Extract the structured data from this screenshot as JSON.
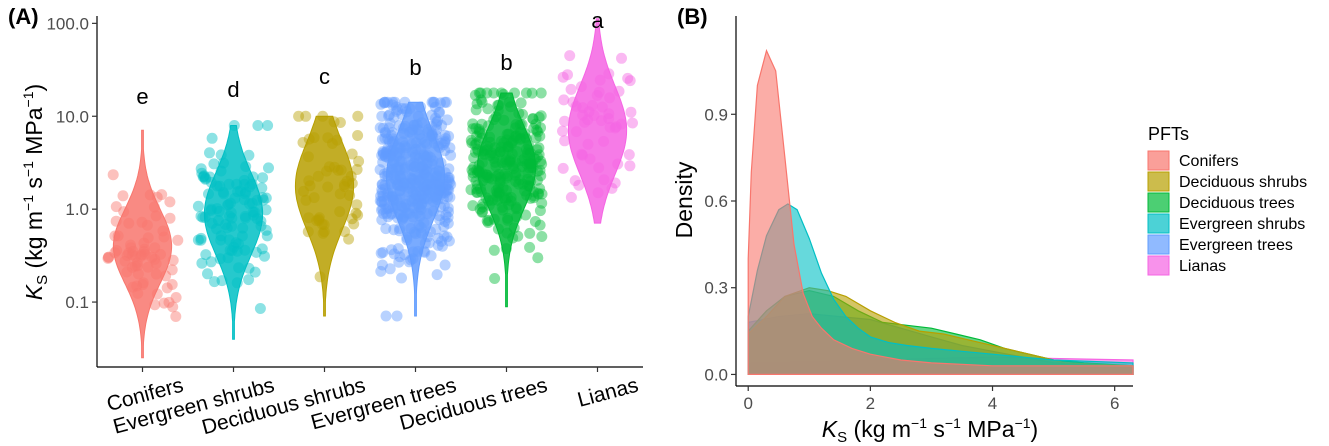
{
  "colors": {
    "Conifers": "#F8766D",
    "Evergreen shrubs": "#00BFC4",
    "Deciduous shrubs": "#B79F00",
    "Evergreen trees": "#619CFF",
    "Deciduous trees": "#00BA38",
    "Lianas": "#F564E3"
  },
  "chart_data": [
    {
      "panel": "(A)",
      "type": "violin",
      "scale": "log10",
      "categories": [
        "Conifers",
        "Evergreen shrubs",
        "Deciduous shrubs",
        "Evergreen trees",
        "Deciduous trees",
        "Lianas"
      ],
      "significance": [
        "e",
        "d",
        "c",
        "b",
        "b",
        "a"
      ],
      "ylim": [
        0.02,
        120
      ],
      "yticks": [
        "0.1",
        "1.0",
        "10.0",
        "100.0"
      ],
      "ytick_values": [
        0.1,
        1.0,
        10.0,
        100.0
      ],
      "ylabel_main": "K",
      "ylabel_sub": "S",
      "ylabel_rest": "(kg m",
      "ylabel_sup1": "−1",
      "ylabel_mid": " s",
      "ylabel_sup2": "−1",
      "ylabel_mid2": " MPa",
      "ylabel_sup3": "−1",
      "ylabel_end": ")",
      "violins": [
        {
          "name": "Conifers",
          "log_range": [
            -1.6,
            0.85
          ],
          "median_log": -0.4,
          "spread": 0.38,
          "n": 70
        },
        {
          "name": "Evergreen shrubs",
          "log_range": [
            -1.4,
            0.9
          ],
          "median_log": -0.05,
          "spread": 0.42,
          "n": 110
        },
        {
          "name": "Deciduous shrubs",
          "log_range": [
            -1.15,
            1.0
          ],
          "median_log": 0.25,
          "spread": 0.45,
          "n": 55
        },
        {
          "name": "Evergreen trees",
          "log_range": [
            -1.15,
            1.15
          ],
          "median_log": 0.35,
          "spread": 0.45,
          "n": 380
        },
        {
          "name": "Deciduous trees",
          "log_range": [
            -1.05,
            1.25
          ],
          "median_log": 0.45,
          "spread": 0.42,
          "n": 250
        },
        {
          "name": "Lianas",
          "log_range": [
            -0.15,
            2.05
          ],
          "median_log": 0.85,
          "spread": 0.45,
          "n": 55
        }
      ]
    },
    {
      "panel": "(B)",
      "type": "area",
      "xlim": [
        -0.2,
        6.3
      ],
      "ylim": [
        -0.04,
        1.24
      ],
      "xticks": [
        "0",
        "2",
        "4",
        "6"
      ],
      "xtick_values": [
        0,
        2,
        4,
        6
      ],
      "yticks": [
        "0.0",
        "0.3",
        "0.6",
        "0.9"
      ],
      "ytick_values": [
        0.0,
        0.3,
        0.6,
        0.9
      ],
      "ylabel": "Density",
      "legend_title": "PFTs",
      "legend_items": [
        "Conifers",
        "Deciduous shrubs",
        "Deciduous trees",
        "Evergreen shrubs",
        "Evergreen trees",
        "Lianas"
      ],
      "series": [
        {
          "name": "Lianas",
          "x": [
            0,
            1,
            2,
            3,
            4,
            5,
            6.3
          ],
          "y": [
            0.04,
            0.045,
            0.05,
            0.055,
            0.06,
            0.055,
            0.05
          ]
        },
        {
          "name": "Evergreen trees",
          "x": [
            0,
            0.5,
            1,
            1.5,
            2,
            2.5,
            3,
            3.5,
            4,
            4.5,
            5,
            6.3
          ],
          "y": [
            0.18,
            0.2,
            0.21,
            0.2,
            0.19,
            0.16,
            0.13,
            0.1,
            0.08,
            0.06,
            0.04,
            0.03
          ]
        },
        {
          "name": "Deciduous trees",
          "x": [
            0,
            0.3,
            0.6,
            1,
            1.4,
            1.8,
            2.2,
            2.6,
            3,
            3.4,
            3.8,
            4.2,
            4.6,
            5,
            5.5,
            6.3
          ],
          "y": [
            0.15,
            0.22,
            0.27,
            0.29,
            0.27,
            0.22,
            0.18,
            0.17,
            0.16,
            0.14,
            0.12,
            0.09,
            0.07,
            0.05,
            0.04,
            0.03
          ]
        },
        {
          "name": "Deciduous shrubs",
          "x": [
            0,
            0.3,
            0.6,
            1,
            1.3,
            1.6,
            2,
            2.4,
            2.8,
            3.2,
            3.6,
            4,
            4.4,
            4.8,
            5.2,
            6.3
          ],
          "y": [
            0.14,
            0.2,
            0.27,
            0.3,
            0.29,
            0.27,
            0.22,
            0.18,
            0.15,
            0.14,
            0.12,
            0.1,
            0.08,
            0.06,
            0.04,
            0.03
          ]
        },
        {
          "name": "Evergreen shrubs",
          "x": [
            0,
            0.15,
            0.3,
            0.5,
            0.65,
            0.8,
            1,
            1.2,
            1.4,
            1.6,
            1.8,
            2,
            2.3,
            2.6,
            3,
            3.5,
            4,
            5,
            6.3
          ],
          "y": [
            0.2,
            0.36,
            0.48,
            0.57,
            0.59,
            0.57,
            0.47,
            0.35,
            0.26,
            0.2,
            0.16,
            0.13,
            0.11,
            0.1,
            0.09,
            0.08,
            0.07,
            0.05,
            0.04
          ]
        },
        {
          "name": "Conifers",
          "x": [
            0,
            0.05,
            0.15,
            0.3,
            0.45,
            0.6,
            0.75,
            0.9,
            1.05,
            1.2,
            1.4,
            1.7,
            2,
            2.5,
            3,
            4,
            5,
            6.3
          ],
          "y": [
            0.4,
            0.7,
            1.0,
            1.12,
            1.05,
            0.75,
            0.45,
            0.28,
            0.2,
            0.16,
            0.12,
            0.09,
            0.07,
            0.05,
            0.04,
            0.03,
            0.03,
            0.03
          ]
        }
      ],
      "xlabel_main": "K",
      "xlabel_sub": "S",
      "xlabel_rest": "(kg m",
      "xlabel_sup1": "−1",
      "xlabel_mid": " s",
      "xlabel_sup2": "−1",
      "xlabel_mid2": " MPa",
      "xlabel_sup3": "−1",
      "xlabel_end": ")"
    }
  ]
}
